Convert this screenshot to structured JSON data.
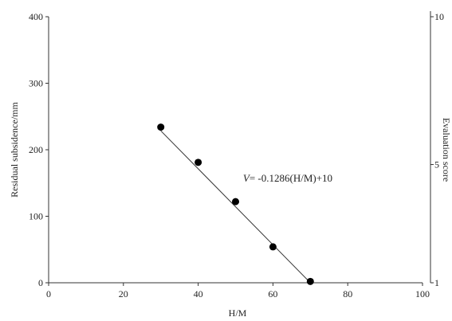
{
  "chart_data": {
    "type": "scatter",
    "title": "",
    "xlabel": "H/M",
    "ylabel": "Residual subsidence/mm",
    "y2label": "Evaluation score",
    "xlim": [
      0,
      100
    ],
    "ylim": [
      0,
      400
    ],
    "y2lim": [
      1,
      10
    ],
    "xticks": [
      0,
      20,
      40,
      60,
      80,
      100
    ],
    "yticks": [
      0,
      100,
      200,
      300,
      400
    ],
    "y2ticks": [
      {
        "value": 1,
        "label": "1"
      },
      {
        "value": 5,
        "label": "5"
      },
      {
        "value": 10,
        "label": "10"
      }
    ],
    "grid": false,
    "series": [
      {
        "x": [
          30,
          40,
          50,
          60,
          70
        ],
        "y": [
          234,
          181,
          122,
          54,
          2
        ],
        "marker": "circle",
        "color": "#000000"
      }
    ],
    "fit_line": {
      "x": [
        30,
        70
      ],
      "y2": [
        6.142,
        1.0
      ],
      "color": "#333333"
    },
    "annotation": {
      "italic_part": "V",
      "rest": "= -0.1286(H/M)+10",
      "x": 52,
      "y": 152
    }
  }
}
